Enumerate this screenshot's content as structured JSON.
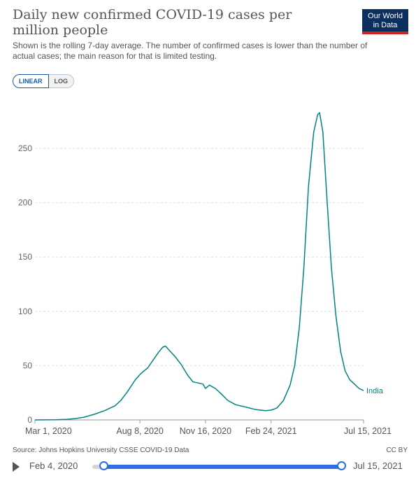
{
  "header": {
    "title": "Daily new confirmed COVID-19 cases per million people",
    "subtitle": "Shown is the rolling 7-day average. The number of confirmed cases is lower than the number of actual cases; the main reason for that is limited testing.",
    "logo_line1": "Our World",
    "logo_line2": "in Data"
  },
  "scale_toggle": {
    "linear": "LINEAR",
    "log": "LOG",
    "selected": "LINEAR"
  },
  "chart_data": {
    "type": "line",
    "title": "Daily new confirmed COVID-19 cases per million people",
    "ylim": [
      0,
      290
    ],
    "yticks": [
      0,
      50,
      100,
      150,
      200,
      250
    ],
    "ytick_labels": [
      "0",
      "50",
      "100",
      "150",
      "200",
      "250"
    ],
    "xticks": [
      "2020-03-01",
      "2020-08-08",
      "2020-11-16",
      "2021-02-24",
      "2021-07-15"
    ],
    "xtick_labels": [
      "Mar 1, 2020",
      "Aug 8, 2020",
      "Nov 16, 2020",
      "Feb 24, 2021",
      "Jul 15, 2021"
    ],
    "x_range": [
      "2020-03-01",
      "2021-07-15"
    ],
    "grid": "horizontal dashed",
    "series": [
      {
        "name": "India",
        "color": "#00847e",
        "points": [
          [
            "2020-03-01",
            0
          ],
          [
            "2020-04-01",
            0.1
          ],
          [
            "2020-04-20",
            0.6
          ],
          [
            "2020-05-01",
            1.2
          ],
          [
            "2020-05-15",
            2.5
          ],
          [
            "2020-06-01",
            5.5
          ],
          [
            "2020-06-15",
            8.5
          ],
          [
            "2020-07-01",
            13
          ],
          [
            "2020-07-10",
            18
          ],
          [
            "2020-07-20",
            26
          ],
          [
            "2020-08-01",
            37
          ],
          [
            "2020-08-10",
            43
          ],
          [
            "2020-08-20",
            48
          ],
          [
            "2020-08-28",
            55
          ],
          [
            "2020-09-05",
            62
          ],
          [
            "2020-09-12",
            67
          ],
          [
            "2020-09-16",
            68
          ],
          [
            "2020-09-22",
            64
          ],
          [
            "2020-10-01",
            58
          ],
          [
            "2020-10-10",
            51
          ],
          [
            "2020-10-20",
            41
          ],
          [
            "2020-10-28",
            35
          ],
          [
            "2020-11-05",
            34
          ],
          [
            "2020-11-12",
            33
          ],
          [
            "2020-11-16",
            29
          ],
          [
            "2020-11-22",
            32
          ],
          [
            "2020-12-01",
            29
          ],
          [
            "2020-12-10",
            24
          ],
          [
            "2020-12-20",
            18
          ],
          [
            "2021-01-01",
            14
          ],
          [
            "2021-01-15",
            12
          ],
          [
            "2021-02-01",
            9.5
          ],
          [
            "2021-02-15",
            8.5
          ],
          [
            "2021-02-24",
            9
          ],
          [
            "2021-03-05",
            11
          ],
          [
            "2021-03-15",
            18
          ],
          [
            "2021-03-25",
            32
          ],
          [
            "2021-04-01",
            50
          ],
          [
            "2021-04-08",
            85
          ],
          [
            "2021-04-15",
            140
          ],
          [
            "2021-04-22",
            215
          ],
          [
            "2021-04-30",
            265
          ],
          [
            "2021-05-06",
            281
          ],
          [
            "2021-05-09",
            283
          ],
          [
            "2021-05-14",
            265
          ],
          [
            "2021-05-20",
            205
          ],
          [
            "2021-05-27",
            140
          ],
          [
            "2021-06-03",
            95
          ],
          [
            "2021-06-10",
            63
          ],
          [
            "2021-06-17",
            45
          ],
          [
            "2021-06-24",
            37
          ],
          [
            "2021-07-01",
            33
          ],
          [
            "2021-07-08",
            29
          ],
          [
            "2021-07-15",
            27
          ]
        ]
      }
    ]
  },
  "footer": {
    "source": "Source: Johns Hopkins University CSSE COVID-19 Data",
    "license": "CC BY"
  },
  "timeline": {
    "start_label": "Feb 4, 2020",
    "end_label": "Jul 15, 2021",
    "track_color": "#2c6ee0"
  }
}
